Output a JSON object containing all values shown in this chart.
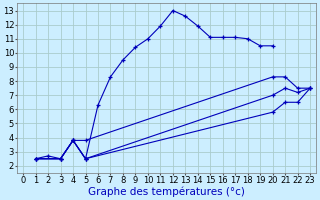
{
  "background_color": "#cceeff",
  "grid_color": "#aacccc",
  "line_color": "#0000bb",
  "xlabel": "Graphe des températures (°c)",
  "xlabel_fontsize": 7.5,
  "tick_fontsize": 6,
  "xlim": [
    -0.5,
    23.5
  ],
  "ylim": [
    1.5,
    13.5
  ],
  "xticks": [
    0,
    1,
    2,
    3,
    4,
    5,
    6,
    7,
    8,
    9,
    10,
    11,
    12,
    13,
    14,
    15,
    16,
    17,
    18,
    19,
    20,
    21,
    22,
    23
  ],
  "yticks": [
    2,
    3,
    4,
    5,
    6,
    7,
    8,
    9,
    10,
    11,
    12,
    13
  ],
  "series1_x": [
    1,
    2,
    3,
    4,
    5,
    6,
    7,
    8,
    9,
    10,
    11,
    12,
    13,
    14,
    15,
    16,
    17,
    18,
    19,
    20
  ],
  "series1_y": [
    2.5,
    2.7,
    2.5,
    3.8,
    2.5,
    6.3,
    8.3,
    9.5,
    10.4,
    11.0,
    11.9,
    13.0,
    12.6,
    11.9,
    11.1,
    11.1,
    11.1,
    11.0,
    10.5,
    10.5
  ],
  "series2_x": [
    1,
    3,
    4,
    5,
    20,
    21,
    22,
    23
  ],
  "series2_y": [
    2.5,
    2.5,
    3.8,
    3.8,
    8.3,
    8.3,
    7.5,
    7.5
  ],
  "series3_x": [
    1,
    3,
    4,
    5,
    20,
    21,
    22,
    23
  ],
  "series3_y": [
    2.5,
    2.5,
    3.8,
    2.5,
    7.0,
    7.5,
    7.2,
    7.5
  ],
  "series4_x": [
    1,
    3,
    4,
    5,
    20,
    21,
    22,
    23
  ],
  "series4_y": [
    2.5,
    2.5,
    3.8,
    2.5,
    5.8,
    6.5,
    6.5,
    7.5
  ]
}
